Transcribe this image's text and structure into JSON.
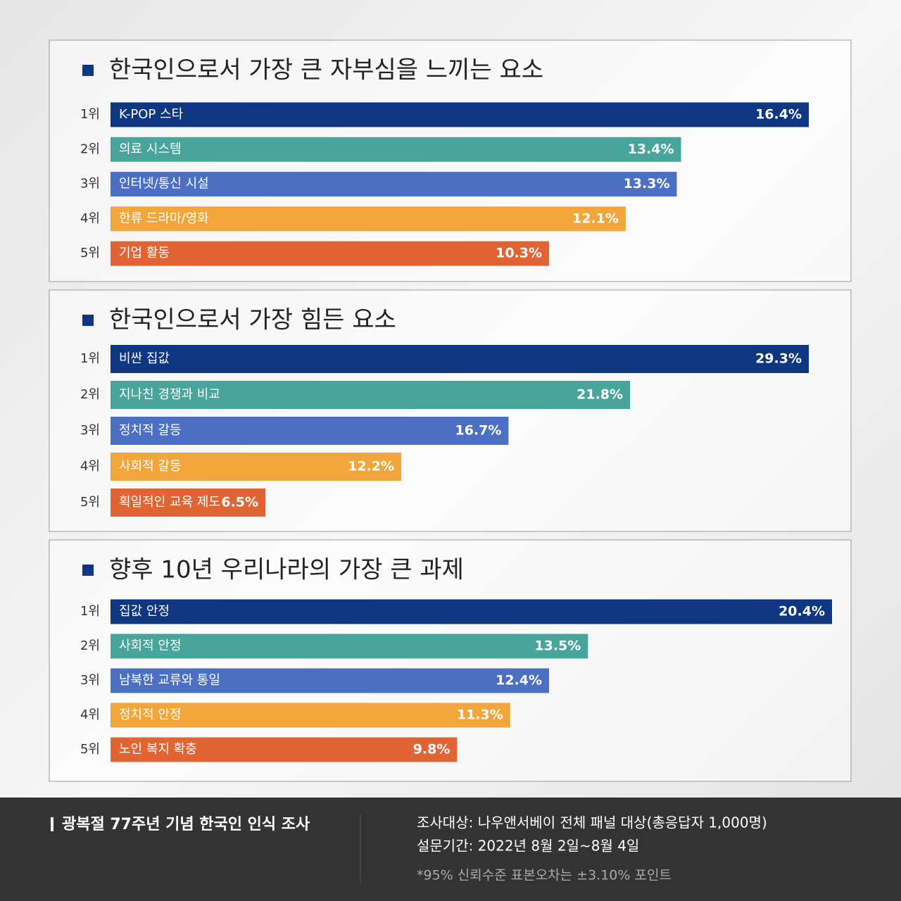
{
  "chart_data": [
    {
      "type": "bar",
      "orientation": "horizontal",
      "title": "한국인으로서 가장 큰 자부심을 느끼는 요소",
      "ranks": [
        "1위",
        "2위",
        "3위",
        "4위",
        "5위"
      ],
      "categories": [
        "K-POP 스타",
        "의료 시스템",
        "인터넷/통신 시설",
        "한류 드라마/영화",
        "기업 활동"
      ],
      "values": [
        16.4,
        13.4,
        13.3,
        12.1,
        10.3
      ],
      "value_labels": [
        "16.4%",
        "13.4%",
        "13.3%",
        "12.1%",
        "10.3%"
      ],
      "colors": [
        "#0f3680",
        "#47a59b",
        "#4b6fc2",
        "#f2a53a",
        "#e06434"
      ]
    },
    {
      "type": "bar",
      "orientation": "horizontal",
      "title": "한국인으로서 가장 힘든 요소",
      "ranks": [
        "1위",
        "2위",
        "3위",
        "4위",
        "5위"
      ],
      "categories": [
        "비싼 집값",
        "지나친 경쟁과 비교",
        "정치적 갈등",
        "사회적 갈등",
        "획일적인 교육 제도"
      ],
      "values": [
        29.3,
        21.8,
        16.7,
        12.2,
        6.5
      ],
      "value_labels": [
        "29.3%",
        "21.8%",
        "16.7%",
        "12.2%",
        "6.5%"
      ],
      "colors": [
        "#0f3680",
        "#47a59b",
        "#4b6fc2",
        "#f2a53a",
        "#e06434"
      ]
    },
    {
      "type": "bar",
      "orientation": "horizontal",
      "title": "향후 10년 우리나라의 가장 큰 과제",
      "ranks": [
        "1위",
        "2위",
        "3위",
        "4위",
        "5위"
      ],
      "categories": [
        "집값 안정",
        "사회적 안정",
        "남북한 교류와 통일",
        "정치적 안정",
        "노인 복지 확충"
      ],
      "values": [
        20.4,
        13.5,
        12.4,
        11.3,
        9.8
      ],
      "value_labels": [
        "20.4%",
        "13.5%",
        "12.4%",
        "11.3%",
        "9.8%"
      ],
      "colors": [
        "#0f3680",
        "#47a59b",
        "#4b6fc2",
        "#f2a53a",
        "#e06434"
      ]
    }
  ],
  "footer": {
    "title": "광복절 77주년 기념 한국인 인식 조사",
    "lines": [
      "조사대상: 나우앤서베이 전체 패널 대상(총응답자 1,000명)",
      "설문기간: 2022년 8월 2일~8월 4일",
      "*95% 신뢰수준 표본오차는 ±3.10% 포인트"
    ]
  }
}
